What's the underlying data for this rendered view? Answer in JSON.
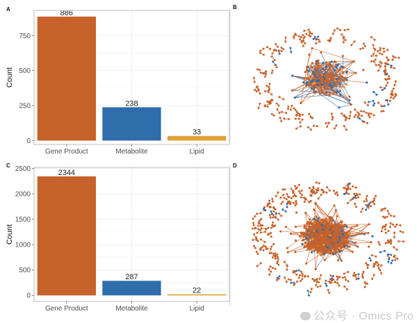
{
  "figure": {
    "panel_labels": [
      "A",
      "B",
      "C",
      "D"
    ],
    "watermark": "公众号 · Omics Pro"
  },
  "colors": {
    "gene_product": "#c7622a",
    "metabolite": "#2f6dab",
    "lipid": "#e0a33a",
    "grid": "#ececec",
    "border": "#bdbdbd",
    "axis_text": "#4d4d4d"
  },
  "chart_data": [
    {
      "panel": "A",
      "type": "bar",
      "title": "",
      "xlabel": "",
      "ylabel": "Count",
      "categories": [
        "Gene Product",
        "Metabolite",
        "Lipid"
      ],
      "values": [
        886,
        238,
        33
      ],
      "data_labels": [
        "886",
        "238",
        "33"
      ],
      "yticks": [
        0,
        250,
        500,
        750
      ],
      "ylim": [
        -28,
        930
      ],
      "grid": true,
      "legend": "none"
    },
    {
      "panel": "B",
      "type": "network",
      "description": "Network graph: dense central hub of connected nodes with peripheral ring of small disconnected components",
      "node_types": [
        "Gene Product",
        "Metabolite",
        "Lipid"
      ]
    },
    {
      "panel": "C",
      "type": "bar",
      "title": "",
      "xlabel": "",
      "ylabel": "Count",
      "categories": [
        "Gene Product",
        "Metabolite",
        "Lipid"
      ],
      "values": [
        2344,
        287,
        22
      ],
      "data_labels": [
        "2344",
        "287",
        "22"
      ],
      "yticks": [
        0,
        500,
        1000,
        1500,
        2000,
        2500
      ],
      "ylim": [
        -120,
        2520
      ],
      "grid": true,
      "legend": "none"
    },
    {
      "panel": "D",
      "type": "network",
      "description": "Larger network graph: very dense central hub with peripheral ring of small disconnected components",
      "node_types": [
        "Gene Product",
        "Metabolite",
        "Lipid"
      ]
    }
  ]
}
